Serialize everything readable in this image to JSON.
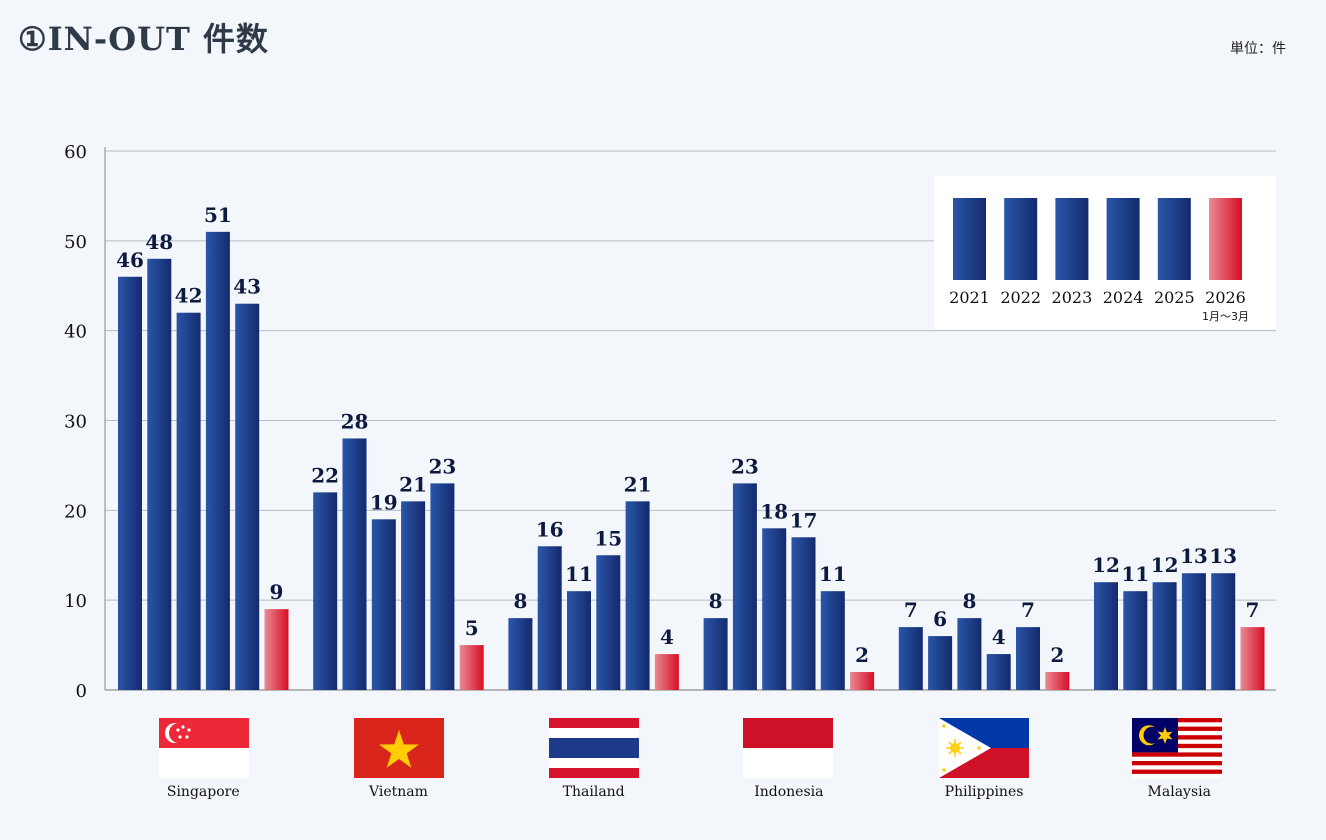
{
  "header": {
    "title": "①IN-OUT 件数",
    "unit": "単位：件"
  },
  "colors": {
    "bar_dark": "#142a6e",
    "bar_light": "#2a56a8",
    "highlight_light": "#e88a94",
    "highlight_dark": "#d90d24",
    "grid": "#b8bcc4",
    "background": "#f3f6fa"
  },
  "chart_data": {
    "type": "bar",
    "title": "",
    "xlabel": "",
    "ylabel": "",
    "ylim": [
      0,
      60
    ],
    "yticks": [
      0,
      10,
      20,
      30,
      40,
      50,
      60
    ],
    "grid": true,
    "legend_position": "top-right",
    "categories": [
      "Singapore",
      "Vietnam",
      "Thailand",
      "Indonesia",
      "Philippines",
      "Malaysia"
    ],
    "category_icons": [
      "singapore-flag-icon",
      "vietnam-flag-icon",
      "thailand-flag-icon",
      "indonesia-flag-icon",
      "philippines-flag-icon",
      "malaysia-flag-icon"
    ],
    "series": [
      {
        "name": "2021",
        "values": [
          46,
          22,
          8,
          8,
          7,
          12
        ]
      },
      {
        "name": "2022",
        "values": [
          48,
          28,
          16,
          23,
          6,
          11
        ]
      },
      {
        "name": "2023",
        "values": [
          42,
          19,
          11,
          18,
          8,
          12
        ]
      },
      {
        "name": "2024",
        "values": [
          51,
          21,
          15,
          17,
          4,
          13
        ]
      },
      {
        "name": "2025",
        "values": [
          43,
          23,
          21,
          11,
          7,
          13
        ]
      },
      {
        "name": "2026",
        "note": "1月～3月",
        "values": [
          9,
          5,
          4,
          2,
          2,
          7
        ]
      }
    ],
    "data_labels": [
      [
        "46",
        "22",
        "8",
        "8",
        "7",
        "12"
      ],
      [
        "48",
        "28",
        "16",
        "23",
        "6",
        "11"
      ],
      [
        "42",
        "19",
        "11",
        "18",
        "8",
        "12"
      ],
      [
        "51",
        "21",
        "15",
        "17",
        "4",
        "13"
      ],
      [
        "43",
        "23",
        "21",
        "11",
        "7",
        "13"
      ],
      [
        "9",
        "5",
        "4",
        "2",
        "2",
        "7"
      ]
    ]
  }
}
